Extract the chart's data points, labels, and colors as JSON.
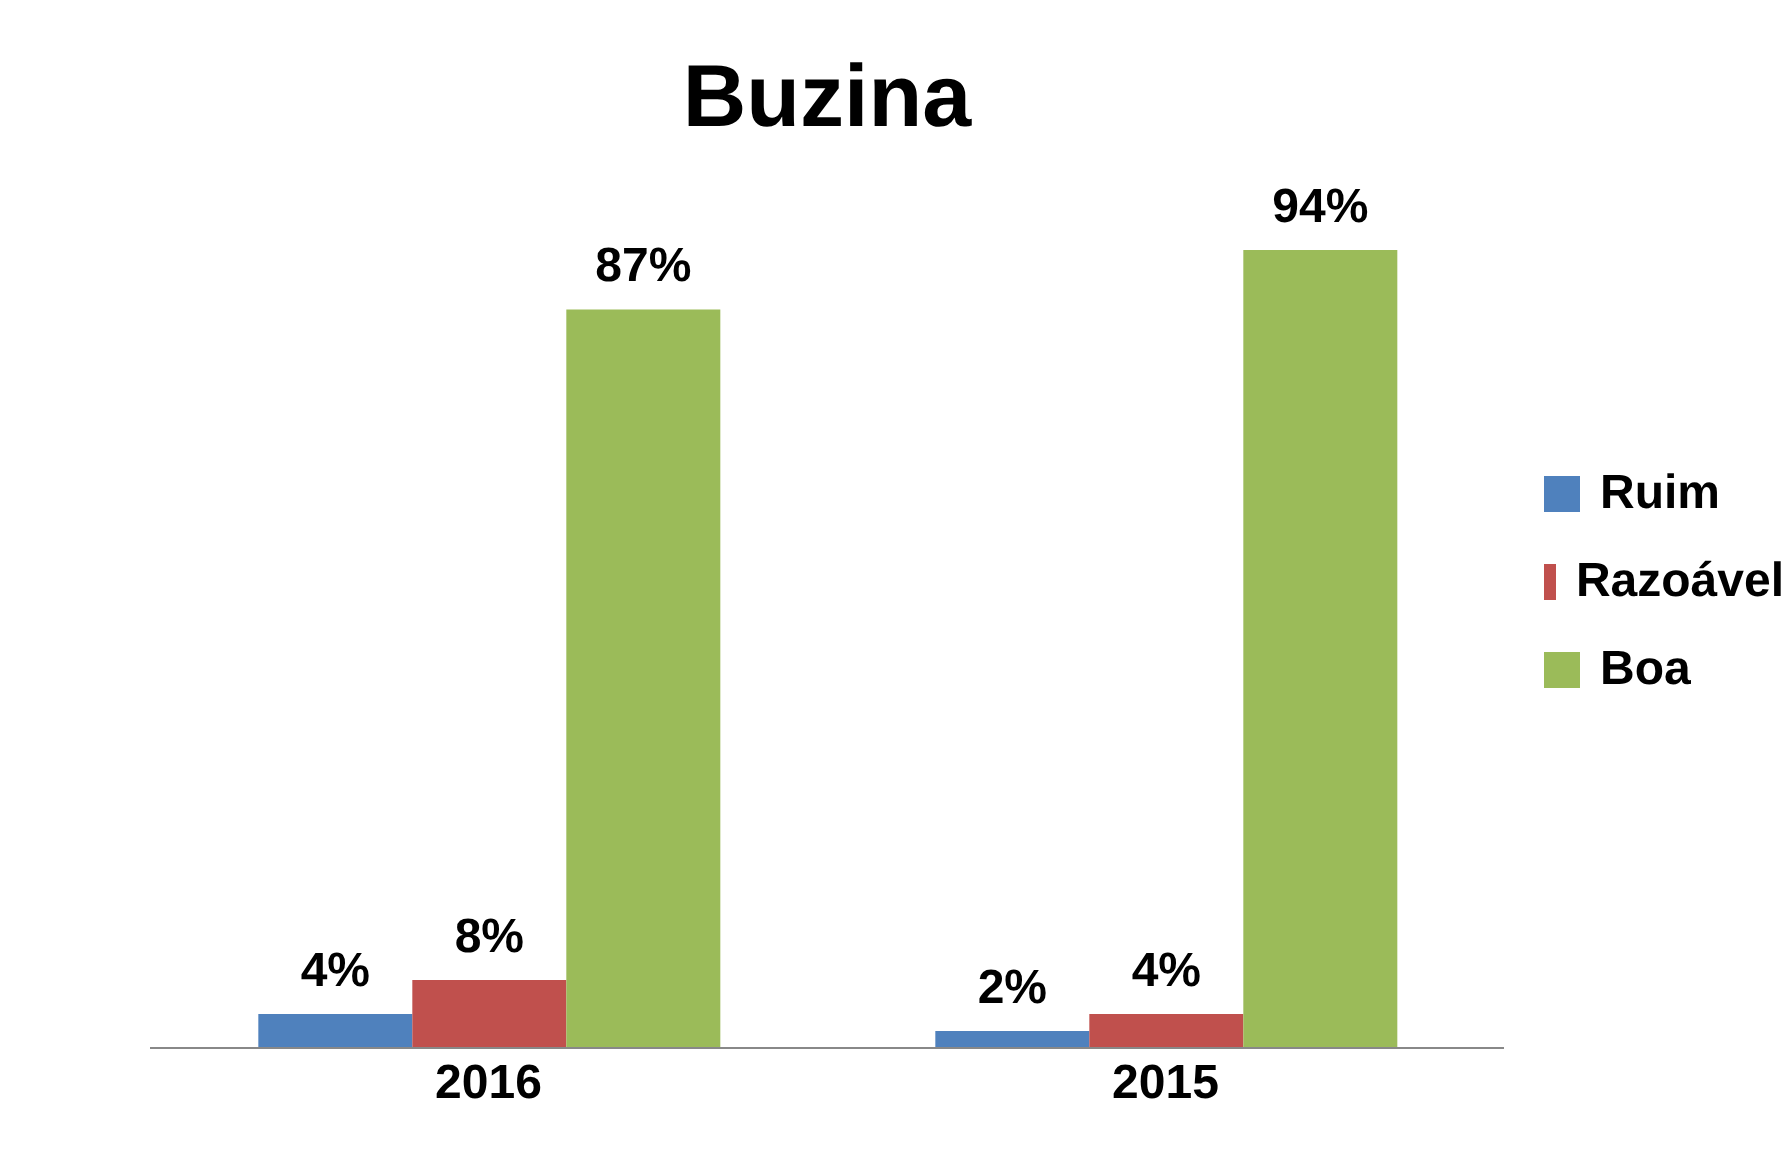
{
  "chart_data": {
    "type": "bar",
    "title": "Buzina",
    "categories": [
      "2016",
      "2015"
    ],
    "series": [
      {
        "name": "Ruim",
        "color": "#4f81bd",
        "values": [
          4,
          2
        ],
        "value_labels": [
          "4%",
          "2%"
        ]
      },
      {
        "name": "Razoável",
        "color": "#c0504d",
        "values": [
          8,
          4
        ],
        "value_labels": [
          "8%",
          "4%"
        ]
      },
      {
        "name": "Boa",
        "color": "#9bbb59",
        "values": [
          87,
          94
        ],
        "value_labels": [
          "87%",
          "94%"
        ]
      }
    ],
    "legend": "right",
    "grid": false
  }
}
